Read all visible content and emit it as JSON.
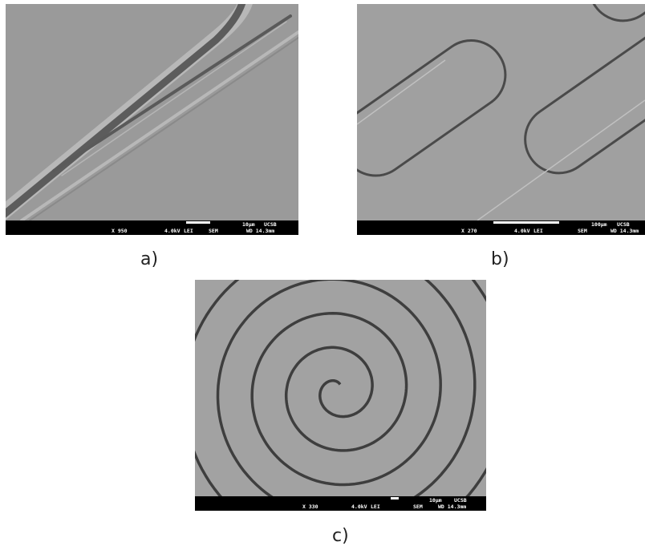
{
  "panels": [
    {
      "label": "a)",
      "scale": "10µm",
      "lab": "UCSB",
      "magnification": "X 950",
      "voltage": "4.0kV",
      "detector": "LEI",
      "mode": "SEM",
      "working_distance": "WD 14.3mm"
    },
    {
      "label": "b)",
      "scale": "100µm",
      "lab": "UCSB",
      "magnification": "X 270",
      "voltage": "4.0kV",
      "detector": "LEI",
      "mode": "SEM",
      "working_distance": "WD 14.3mm"
    },
    {
      "label": "c)",
      "scale": "10µm",
      "lab": "UCSB",
      "magnification": "X 330",
      "voltage": "4.0kV",
      "detector": "LEI",
      "mode": "SEM",
      "working_distance": "WD 14.3mm"
    }
  ]
}
